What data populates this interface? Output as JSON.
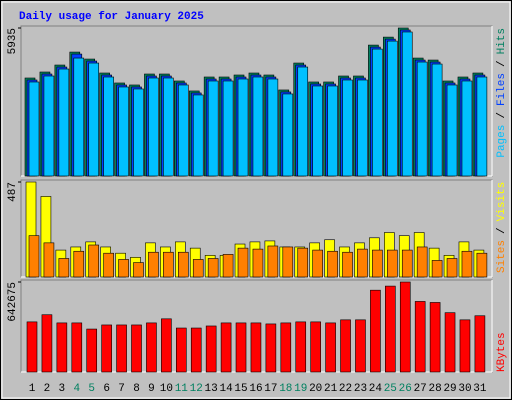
{
  "chart_data": [
    {
      "type": "bar",
      "title": "Daily usage for January 2025",
      "legend_separator": "/",
      "series": [
        {
          "name": "Hits",
          "color": "#008060",
          "values": [
            3930,
            4170,
            4450,
            4970,
            4690,
            4130,
            3730,
            3650,
            4090,
            4090,
            3810,
            3410,
            3970,
            3970,
            4050,
            4130,
            4050,
            3450,
            4530,
            3770,
            3770,
            4010,
            4010,
            5250,
            5570,
            5935,
            4730,
            4650,
            3810,
            3970,
            4130
          ]
        },
        {
          "name": "Files",
          "color": "#0040ff",
          "values": [
            3850,
            4090,
            4370,
            4890,
            4610,
            4050,
            3650,
            3570,
            4010,
            4010,
            3730,
            3330,
            3890,
            3890,
            3970,
            4050,
            3970,
            3370,
            4450,
            3690,
            3690,
            3930,
            3930,
            5170,
            5490,
            5855,
            4650,
            4570,
            3730,
            3890,
            4050
          ]
        },
        {
          "name": "Pages",
          "color": "#00c0ff",
          "values": [
            3770,
            4010,
            4290,
            4730,
            4530,
            3970,
            3570,
            3490,
            3930,
            3930,
            3650,
            3250,
            3810,
            3810,
            3890,
            3970,
            3890,
            3290,
            4370,
            3610,
            3610,
            3850,
            3850,
            5090,
            5410,
            5775,
            4570,
            4490,
            3650,
            3810,
            3970
          ]
        }
      ],
      "ylim": [
        0,
        5935
      ],
      "yticks": [
        5935
      ]
    },
    {
      "type": "bar",
      "legend_separator": "/",
      "series": [
        {
          "name": "Visits",
          "color": "#ffff00",
          "values": [
            487,
            413,
            138,
            154,
            180,
            154,
            122,
            101,
            175,
            154,
            180,
            148,
            111,
            111,
            169,
            180,
            185,
            154,
            154,
            175,
            191,
            154,
            175,
            201,
            228,
            212,
            228,
            148,
            111,
            180,
            138
          ]
        },
        {
          "name": "Sites",
          "color": "#ff8000",
          "values": [
            212,
            175,
            95,
            132,
            164,
            122,
            90,
            74,
            127,
            127,
            127,
            90,
            95,
            116,
            148,
            143,
            159,
            154,
            148,
            138,
            132,
            127,
            143,
            138,
            138,
            138,
            154,
            85,
            95,
            132,
            122
          ]
        }
      ],
      "ylim": [
        0,
        487
      ],
      "yticks": [
        487
      ]
    },
    {
      "type": "bar",
      "categories": [
        "1",
        "2",
        "3",
        "4",
        "5",
        "6",
        "7",
        "8",
        "9",
        "10",
        "11",
        "12",
        "13",
        "14",
        "15",
        "16",
        "17",
        "18",
        "19",
        "20",
        "21",
        "22",
        "23",
        "24",
        "25",
        "26",
        "27",
        "28",
        "29",
        "30",
        "31"
      ],
      "label_colors": [
        "#000000",
        "#000000",
        "#000000",
        "#008060",
        "#008060",
        "#000000",
        "#000000",
        "#000000",
        "#000000",
        "#000000",
        "#008060",
        "#008060",
        "#000000",
        "#000000",
        "#000000",
        "#000000",
        "#000000",
        "#008060",
        "#008060",
        "#000000",
        "#000000",
        "#000000",
        "#000000",
        "#000000",
        "#008060",
        "#008060",
        "#000000",
        "#000000",
        "#000000",
        "#000000",
        "#000000"
      ],
      "series": [
        {
          "name": "KBytes",
          "color": "#ff0000",
          "values": [
            357855,
            408975,
            350550,
            350550,
            306700,
            335940,
            335940,
            335940,
            350550,
            379760,
            314030,
            314030,
            328640,
            350550,
            350550,
            350550,
            343250,
            350550,
            357855,
            357855,
            350550,
            372450,
            372450,
            584250,
            613460,
            642675,
            503910,
            496600,
            423580,
            372450,
            401670
          ]
        }
      ],
      "ylim": [
        0,
        642675
      ],
      "yticks": [
        642675
      ]
    }
  ]
}
